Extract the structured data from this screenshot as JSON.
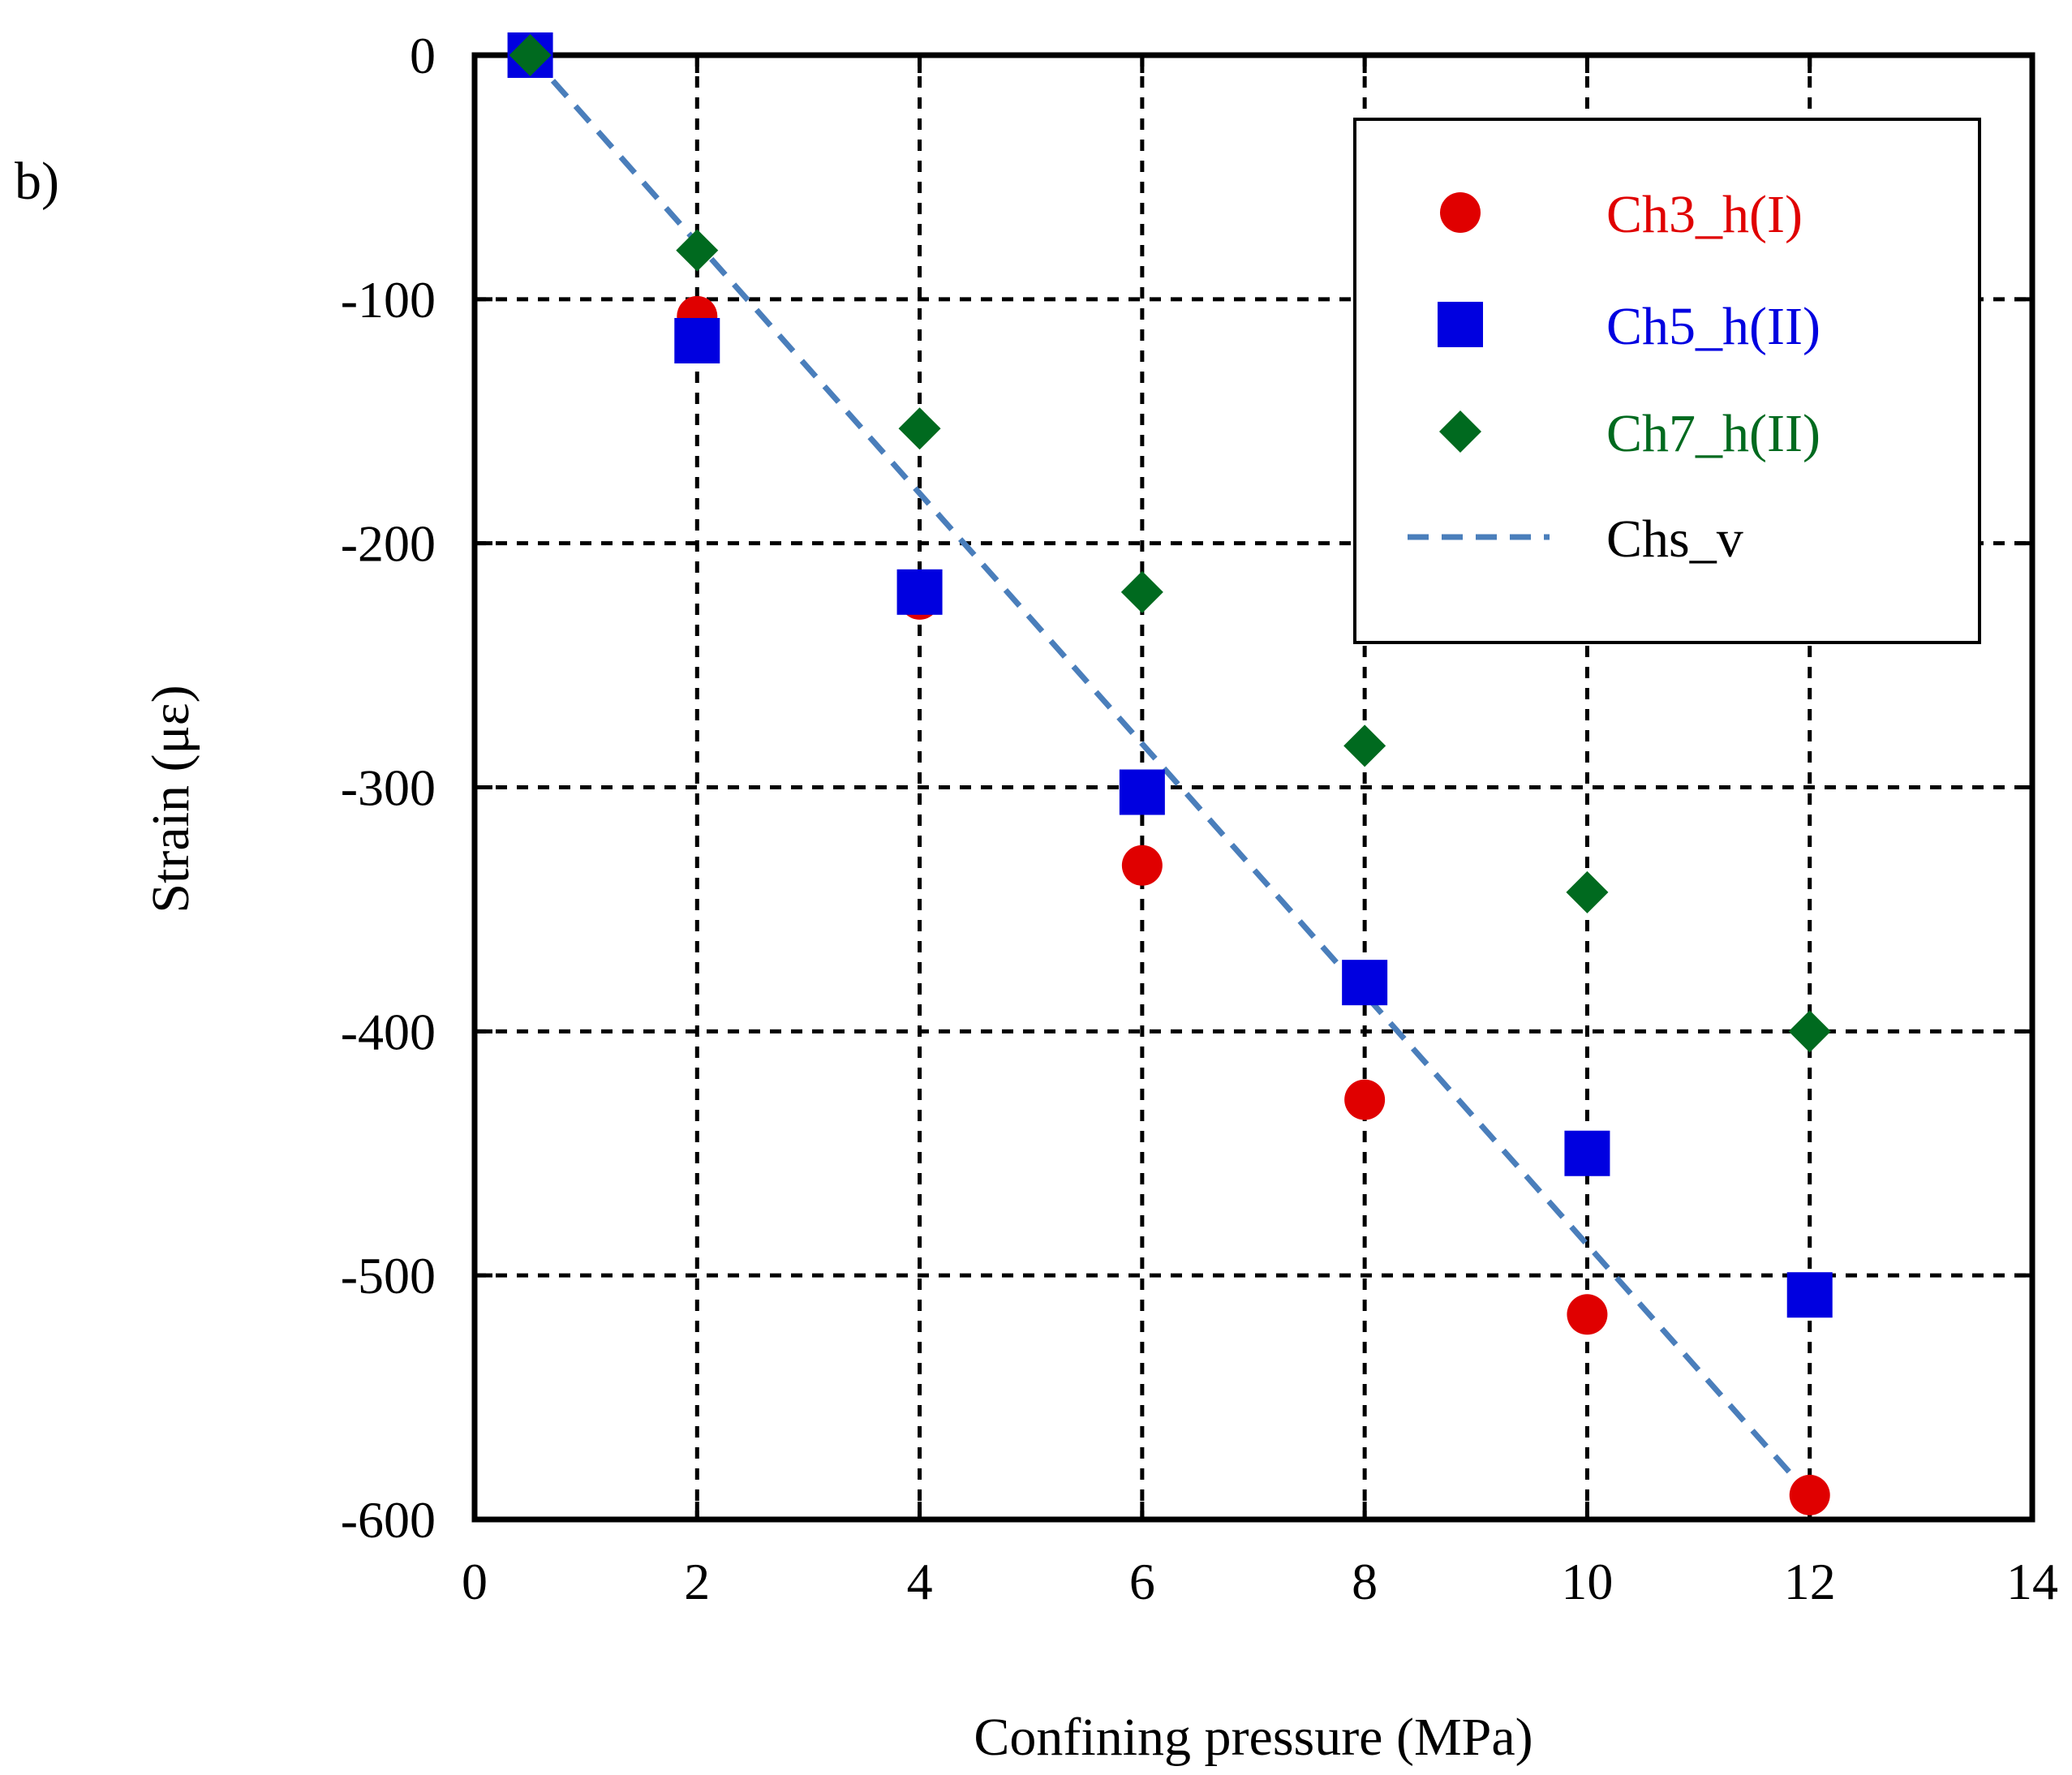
{
  "panel_label": "b)",
  "chart_data": {
    "type": "scatter",
    "xlabel": "Confining pressure (MPa)",
    "ylabel": "Strain (με)",
    "xlim": [
      0,
      14
    ],
    "ylim": [
      -600,
      0
    ],
    "xticks": [
      0,
      2,
      4,
      6,
      8,
      10,
      12,
      14
    ],
    "yticks": [
      0,
      -100,
      -200,
      -300,
      -400,
      -500,
      -600
    ],
    "xtick_labels": [
      "0",
      "2",
      "4",
      "6",
      "8",
      "10",
      "12",
      "14"
    ],
    "ytick_labels": [
      "0",
      "-100",
      "-200",
      "-300",
      "-400",
      "-500",
      "-600"
    ],
    "grid": true,
    "legend_position": "top-right",
    "series": [
      {
        "name": "Ch3_h(I)",
        "marker": "circle",
        "color": "#e00000",
        "x": [
          0.5,
          2,
          4,
          6,
          8,
          10,
          12
        ],
        "y": [
          0,
          -107,
          -223,
          -332,
          -428,
          -516,
          -590
        ]
      },
      {
        "name": "Ch5_h(II)",
        "marker": "square",
        "color": "#0000e0",
        "x": [
          0.5,
          2,
          4,
          6,
          8,
          10,
          12
        ],
        "y": [
          0,
          -117,
          -220,
          -302,
          -380,
          -450,
          -508
        ]
      },
      {
        "name": "Ch7_h(II)",
        "marker": "diamond",
        "color": "#006a1f",
        "x": [
          0.5,
          2,
          4,
          6,
          8,
          10,
          12
        ],
        "y": [
          0,
          -80,
          -153,
          -220,
          -283,
          -343,
          -400
        ]
      },
      {
        "name": "Chs_v",
        "marker": "dashed-line",
        "color": "#4a7ebb",
        "x": [
          0.5,
          12
        ],
        "y": [
          0,
          -590
        ]
      }
    ]
  }
}
